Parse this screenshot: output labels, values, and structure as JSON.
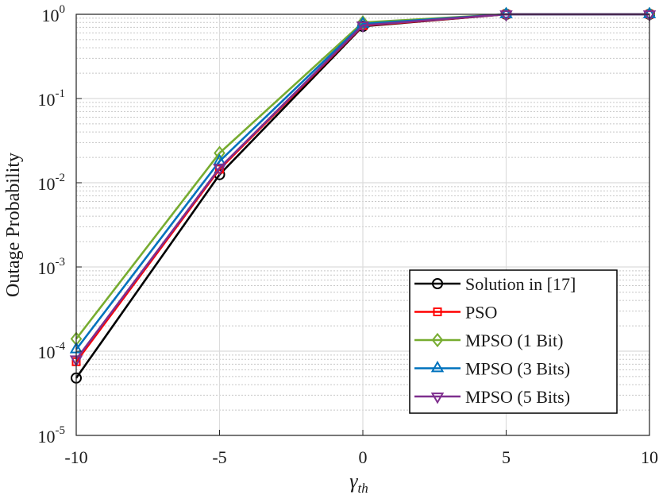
{
  "chart_data": {
    "type": "line",
    "title": "",
    "xlabel": "γ",
    "xlabel_subscript": "th",
    "ylabel": "Outage Probability",
    "x": [
      -10,
      -5,
      0,
      5,
      10
    ],
    "xlim": [
      -10,
      10
    ],
    "ylim": [
      1e-05,
      1
    ],
    "yscale": "log",
    "x_ticks": [
      -10,
      -5,
      0,
      5,
      10
    ],
    "x_tick_labels": [
      "-10",
      "-5",
      "0",
      "5",
      "10"
    ],
    "y_ticks": [
      {
        "base": "10",
        "exp": "-5",
        "value": 1e-05
      },
      {
        "base": "10",
        "exp": "-4",
        "value": 0.0001
      },
      {
        "base": "10",
        "exp": "-3",
        "value": 0.001
      },
      {
        "base": "10",
        "exp": "-2",
        "value": 0.01
      },
      {
        "base": "10",
        "exp": "-1",
        "value": 0.1
      },
      {
        "base": "10",
        "exp": "0",
        "value": 1
      }
    ],
    "grid": true,
    "minor_grid": true,
    "legend_position": "bottom-right",
    "series": [
      {
        "name": "Solution in [17]",
        "color": "#000000",
        "marker": "circle",
        "values": [
          4.8e-05,
          0.0125,
          0.72,
          1,
          1
        ]
      },
      {
        "name": "PSO",
        "color": "#ff0000",
        "marker": "square",
        "values": [
          7.5e-05,
          0.0145,
          0.73,
          1,
          1
        ]
      },
      {
        "name": "MPSO (1 Bit)",
        "color": "#77ac30",
        "marker": "diamond",
        "values": [
          0.00014,
          0.0225,
          0.8,
          1,
          1
        ]
      },
      {
        "name": "MPSO (3 Bits)",
        "color": "#0072bd",
        "marker": "triangle-up",
        "values": [
          0.000105,
          0.018,
          0.77,
          1,
          1
        ]
      },
      {
        "name": "MPSO (5 Bits)",
        "color": "#7e2f8e",
        "marker": "triangle-down",
        "values": [
          8e-05,
          0.015,
          0.74,
          1,
          1
        ]
      }
    ]
  }
}
